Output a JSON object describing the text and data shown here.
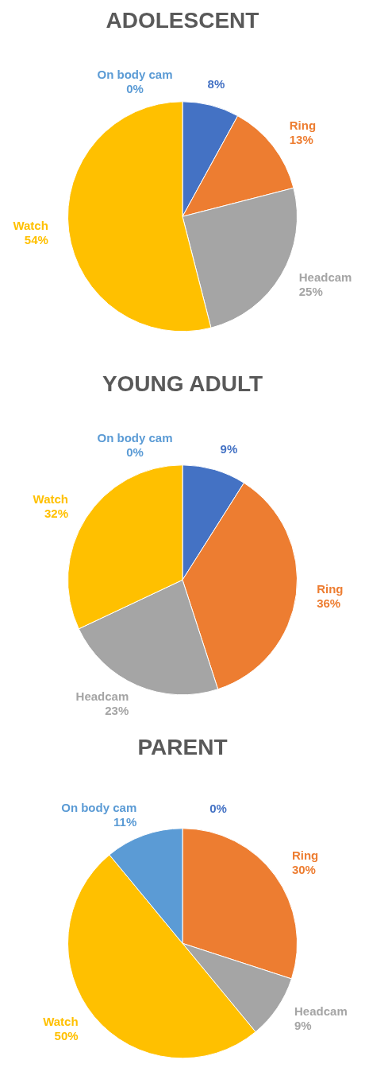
{
  "chart_data": [
    {
      "type": "pie",
      "title": "ADOLESCENT",
      "categories": [
        null,
        "Ring",
        "Headcam",
        "Watch",
        "On body cam"
      ],
      "values": [
        8,
        13,
        25,
        54,
        0
      ],
      "colors": [
        "#4472c4",
        "#ed7d31",
        "#a5a5a5",
        "#ffc000",
        "#5b9bd5"
      ],
      "value_labels": [
        "8%",
        "13%",
        "25%",
        "54%",
        "0%"
      ]
    },
    {
      "type": "pie",
      "title": "YOUNG ADULT",
      "categories": [
        null,
        "Ring",
        "Headcam",
        "Watch",
        "On body cam"
      ],
      "values": [
        9,
        36,
        23,
        32,
        0
      ],
      "colors": [
        "#4472c4",
        "#ed7d31",
        "#a5a5a5",
        "#ffc000",
        "#5b9bd5"
      ],
      "value_labels": [
        "9%",
        "36%",
        "23%",
        "32%",
        "0%"
      ]
    },
    {
      "type": "pie",
      "title": "PARENT",
      "categories": [
        null,
        "Ring",
        "Headcam",
        "Watch",
        "On body cam"
      ],
      "values": [
        0,
        30,
        9,
        50,
        11
      ],
      "colors": [
        "#4472c4",
        "#ed7d31",
        "#a5a5a5",
        "#ffc000",
        "#5b9bd5"
      ],
      "value_labels": [
        "0%",
        "30%",
        "9%",
        "50%",
        "11%"
      ]
    }
  ]
}
